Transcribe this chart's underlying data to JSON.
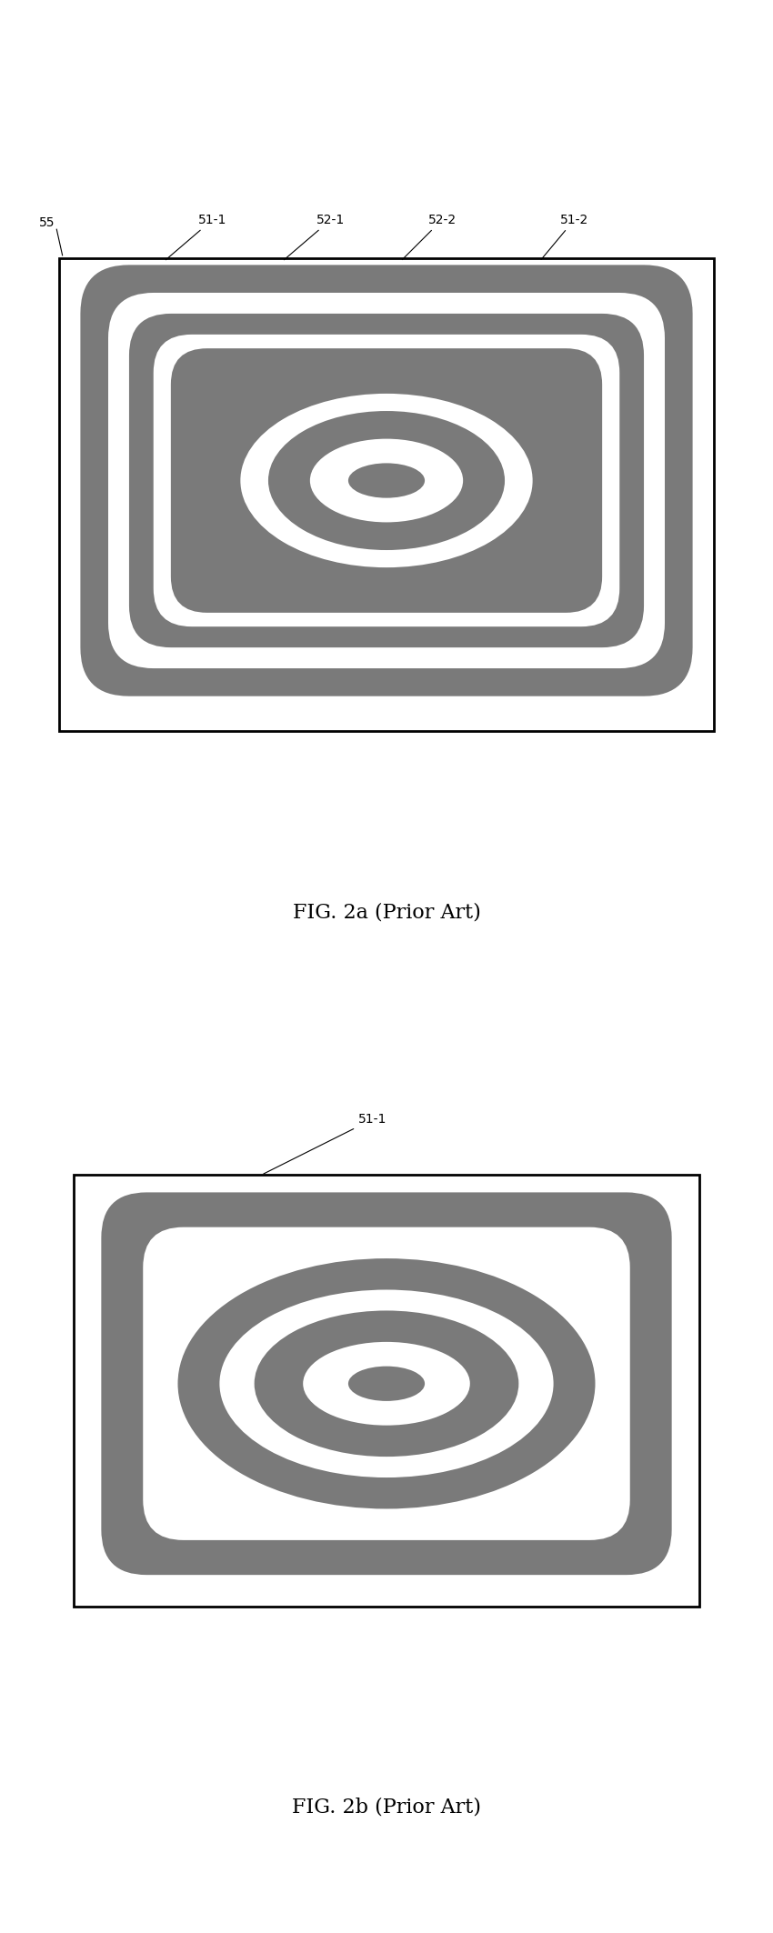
{
  "bg_color": "#ffffff",
  "dark_gray": "#7a7a7a",
  "white": "#ffffff",
  "border_color": "#000000",
  "fig1_title": "FIG. 2a (Prior Art)",
  "fig2_title": "FIG. 2b (Prior Art)",
  "label_fontsize": 10,
  "caption_fontsize": 16
}
